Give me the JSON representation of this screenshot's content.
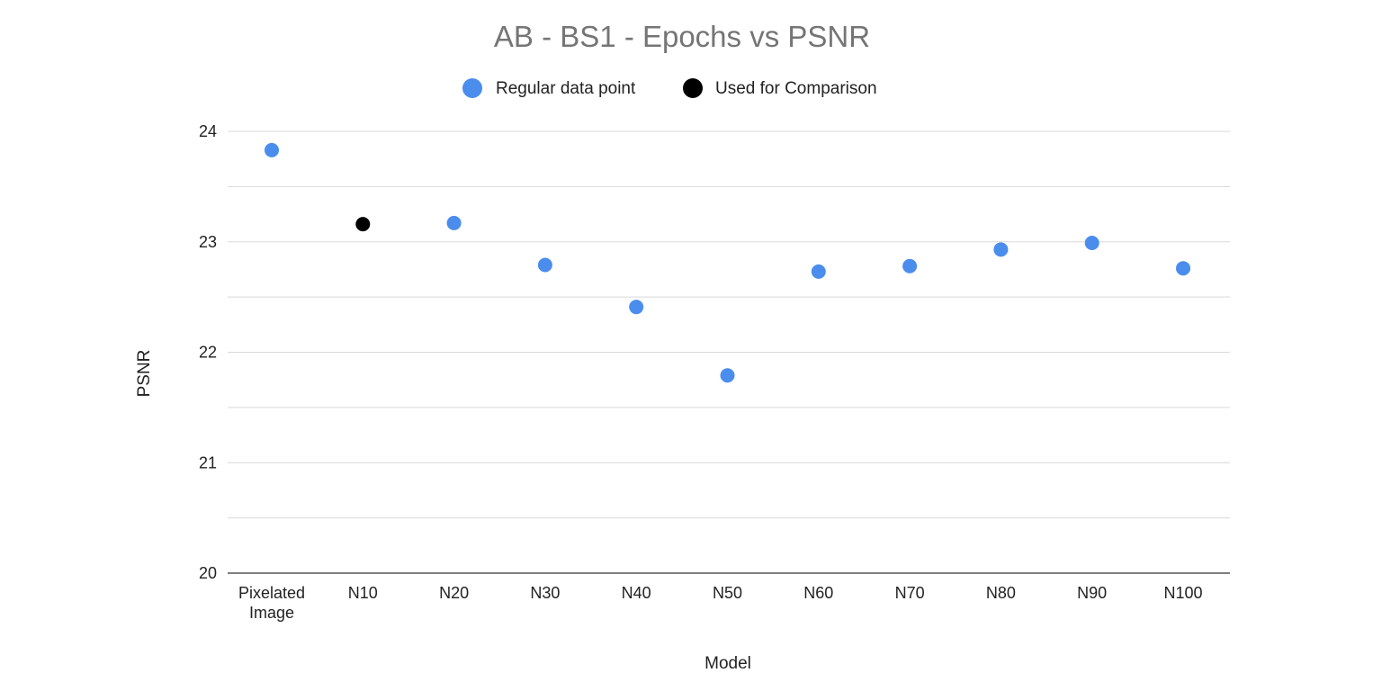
{
  "chart_data": {
    "type": "scatter",
    "title": "AB - BS1 - Epochs vs PSNR",
    "xlabel": "Model",
    "ylabel": "PSNR",
    "categories": [
      "Pixelated Image",
      "N10",
      "N20",
      "N30",
      "N40",
      "N50",
      "N60",
      "N70",
      "N80",
      "N90",
      "N100"
    ],
    "category_tick_labels": [
      [
        "Pixelated",
        "Image"
      ],
      [
        "N10"
      ],
      [
        "N20"
      ],
      [
        "N30"
      ],
      [
        "N40"
      ],
      [
        "N50"
      ],
      [
        "N60"
      ],
      [
        "N70"
      ],
      [
        "N80"
      ],
      [
        "N90"
      ],
      [
        "N100"
      ]
    ],
    "ylim": [
      20,
      24
    ],
    "yticks": [
      20,
      21,
      22,
      23,
      24
    ],
    "minor_gridlines": [
      20.5,
      21.5,
      22.5,
      23.5
    ],
    "grid": true,
    "legend_position": "top",
    "series": [
      {
        "name": "Regular data point",
        "color": "#4a8ded",
        "points": [
          {
            "category": "Pixelated Image",
            "y": 23.83
          },
          {
            "category": "N20",
            "y": 23.17
          },
          {
            "category": "N30",
            "y": 22.79
          },
          {
            "category": "N40",
            "y": 22.41
          },
          {
            "category": "N50",
            "y": 21.79
          },
          {
            "category": "N60",
            "y": 22.73
          },
          {
            "category": "N70",
            "y": 22.78
          },
          {
            "category": "N80",
            "y": 22.93
          },
          {
            "category": "N90",
            "y": 22.99
          },
          {
            "category": "N100",
            "y": 22.76
          }
        ]
      },
      {
        "name": "Used for Comparison",
        "color": "#000000",
        "points": [
          {
            "category": "N10",
            "y": 23.16
          }
        ]
      }
    ]
  },
  "colors": {
    "title": "#757575",
    "gridline": "#d9d9d9",
    "axis_text": "#222222"
  }
}
